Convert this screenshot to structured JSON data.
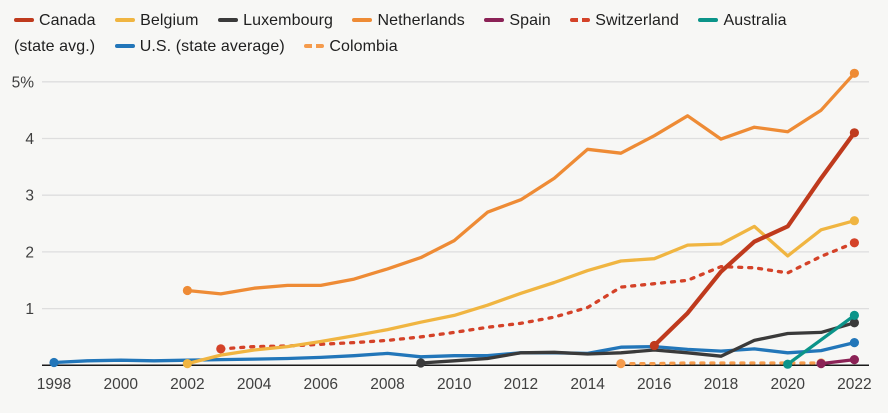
{
  "page": {
    "background": "#f7f7f5"
  },
  "colors": {
    "grid": "#dedede",
    "axis": "#1a1a1a",
    "tick_label": "#3f3f3f",
    "legend_text": "#1f1f1f"
  },
  "legend": {
    "items": [
      {
        "label": "Canada",
        "color": "#bf3a1d",
        "dash": false
      },
      {
        "label": "Belgium",
        "color": "#f0b541",
        "dash": false
      },
      {
        "label": "Luxembourg",
        "color": "#3a3a3a",
        "dash": false
      },
      {
        "label": "Netherlands",
        "color": "#ee8b35",
        "dash": false
      },
      {
        "label": "Spain",
        "color": "#8b2256",
        "dash": false
      },
      {
        "label": "Switzerland",
        "color": "#d44228",
        "dash": true
      },
      {
        "label": "Australia (state avg.)",
        "color": "#0b9489",
        "dash": false
      },
      {
        "label": "U.S. (state average)",
        "color": "#2276b9",
        "dash": false
      },
      {
        "label": "Colombia",
        "color": "#f59b4c",
        "dash": true
      }
    ]
  },
  "chart_data": {
    "type": "line",
    "unit": "percent",
    "grid": "horizontal",
    "legend_position": "top",
    "xlim": [
      1998,
      2022
    ],
    "ylim": [
      0,
      5.3
    ],
    "x_ticks": [
      "1998",
      "2000",
      "2002",
      "2004",
      "2006",
      "2008",
      "2010",
      "2012",
      "2014",
      "2016",
      "2018",
      "2020",
      "2022"
    ],
    "y_ticks": [
      {
        "value": 1,
        "label": "1"
      },
      {
        "value": 2,
        "label": "2"
      },
      {
        "value": 3,
        "label": "3"
      },
      {
        "value": 4,
        "label": "4"
      },
      {
        "value": 5,
        "label": "5%"
      }
    ],
    "series": [
      {
        "name": "Canada",
        "color": "#bf3a1d",
        "dash": false,
        "width": 4.2,
        "points": [
          [
            2016,
            0.35
          ],
          [
            2017,
            0.92
          ],
          [
            2018,
            1.65
          ],
          [
            2019,
            2.18
          ],
          [
            2020,
            2.45
          ],
          [
            2021,
            3.3
          ],
          [
            2022,
            4.1
          ]
        ]
      },
      {
        "name": "Belgium",
        "color": "#f0b541",
        "dash": false,
        "width": 3.3,
        "points": [
          [
            2002,
            0.03
          ],
          [
            2003,
            0.18
          ],
          [
            2004,
            0.27
          ],
          [
            2005,
            0.33
          ],
          [
            2006,
            0.42
          ],
          [
            2007,
            0.52
          ],
          [
            2008,
            0.63
          ],
          [
            2009,
            0.76
          ],
          [
            2010,
            0.88
          ],
          [
            2011,
            1.06
          ],
          [
            2012,
            1.27
          ],
          [
            2013,
            1.46
          ],
          [
            2014,
            1.67
          ],
          [
            2015,
            1.84
          ],
          [
            2016,
            1.88
          ],
          [
            2017,
            2.12
          ],
          [
            2018,
            2.14
          ],
          [
            2019,
            2.45
          ],
          [
            2020,
            1.93
          ],
          [
            2021,
            2.39
          ],
          [
            2022,
            2.55
          ]
        ]
      },
      {
        "name": "Luxembourg",
        "color": "#3a3a3a",
        "dash": false,
        "width": 3.3,
        "points": [
          [
            2009,
            0.04
          ],
          [
            2010,
            0.08
          ],
          [
            2011,
            0.12
          ],
          [
            2012,
            0.22
          ],
          [
            2013,
            0.23
          ],
          [
            2014,
            0.2
          ],
          [
            2015,
            0.22
          ],
          [
            2016,
            0.27
          ],
          [
            2017,
            0.22
          ],
          [
            2018,
            0.16
          ],
          [
            2019,
            0.44
          ],
          [
            2020,
            0.56
          ],
          [
            2021,
            0.58
          ],
          [
            2022,
            0.75
          ]
        ]
      },
      {
        "name": "Netherlands",
        "color": "#ee8b35",
        "dash": false,
        "width": 3.3,
        "points": [
          [
            2002,
            1.32
          ],
          [
            2003,
            1.26
          ],
          [
            2004,
            1.36
          ],
          [
            2005,
            1.41
          ],
          [
            2006,
            1.41
          ],
          [
            2007,
            1.52
          ],
          [
            2008,
            1.7
          ],
          [
            2009,
            1.9
          ],
          [
            2010,
            2.2
          ],
          [
            2011,
            2.7
          ],
          [
            2012,
            2.92
          ],
          [
            2013,
            3.3
          ],
          [
            2014,
            3.81
          ],
          [
            2015,
            3.74
          ],
          [
            2016,
            4.05
          ],
          [
            2017,
            4.4
          ],
          [
            2018,
            3.99
          ],
          [
            2019,
            4.2
          ],
          [
            2020,
            4.12
          ],
          [
            2021,
            4.5
          ],
          [
            2022,
            5.15
          ]
        ]
      },
      {
        "name": "Spain",
        "color": "#8b2256",
        "dash": false,
        "width": 3.3,
        "points": [
          [
            2021,
            0.03
          ],
          [
            2022,
            0.1
          ]
        ]
      },
      {
        "name": "Switzerland",
        "color": "#d44228",
        "dash": true,
        "width": 3.3,
        "points": [
          [
            2003,
            0.29
          ],
          [
            2004,
            0.33
          ],
          [
            2005,
            0.34
          ],
          [
            2006,
            0.37
          ],
          [
            2007,
            0.4
          ],
          [
            2008,
            0.44
          ],
          [
            2009,
            0.5
          ],
          [
            2010,
            0.58
          ],
          [
            2011,
            0.67
          ],
          [
            2012,
            0.74
          ],
          [
            2013,
            0.85
          ],
          [
            2014,
            1.02
          ],
          [
            2015,
            1.38
          ],
          [
            2016,
            1.44
          ],
          [
            2017,
            1.5
          ],
          [
            2018,
            1.74
          ],
          [
            2019,
            1.72
          ],
          [
            2020,
            1.63
          ],
          [
            2021,
            1.92
          ],
          [
            2022,
            2.16
          ]
        ]
      },
      {
        "name": "Australia (state avg.)",
        "color": "#0b9489",
        "dash": false,
        "width": 3.3,
        "points": [
          [
            2020,
            0.02
          ],
          [
            2021,
            0.45
          ],
          [
            2022,
            0.88
          ]
        ]
      },
      {
        "name": "U.S. (state average)",
        "color": "#2276b9",
        "dash": false,
        "width": 3.3,
        "points": [
          [
            1998,
            0.05
          ],
          [
            1999,
            0.08
          ],
          [
            2000,
            0.09
          ],
          [
            2001,
            0.08
          ],
          [
            2002,
            0.09
          ],
          [
            2003,
            0.1
          ],
          [
            2004,
            0.11
          ],
          [
            2005,
            0.12
          ],
          [
            2006,
            0.14
          ],
          [
            2007,
            0.17
          ],
          [
            2008,
            0.21
          ],
          [
            2009,
            0.15
          ],
          [
            2010,
            0.17
          ],
          [
            2011,
            0.17
          ],
          [
            2012,
            0.22
          ],
          [
            2013,
            0.22
          ],
          [
            2014,
            0.21
          ],
          [
            2015,
            0.32
          ],
          [
            2016,
            0.33
          ],
          [
            2017,
            0.28
          ],
          [
            2018,
            0.25
          ],
          [
            2019,
            0.29
          ],
          [
            2020,
            0.22
          ],
          [
            2021,
            0.26
          ],
          [
            2022,
            0.4
          ]
        ]
      },
      {
        "name": "Colombia",
        "color": "#f59b4c",
        "dash": true,
        "width": 3.3,
        "points": [
          [
            2015,
            0.03
          ],
          [
            2016,
            0.03
          ],
          [
            2017,
            0.04
          ],
          [
            2018,
            0.04
          ],
          [
            2019,
            0.04
          ],
          [
            2020,
            0.04
          ],
          [
            2021,
            0.04
          ]
        ]
      }
    ],
    "draw_order": [
      "Colombia",
      "U.S. (state average)",
      "Luxembourg",
      "Australia (state avg.)",
      "Spain",
      "Switzerland",
      "Belgium",
      "Netherlands",
      "Canada"
    ]
  }
}
